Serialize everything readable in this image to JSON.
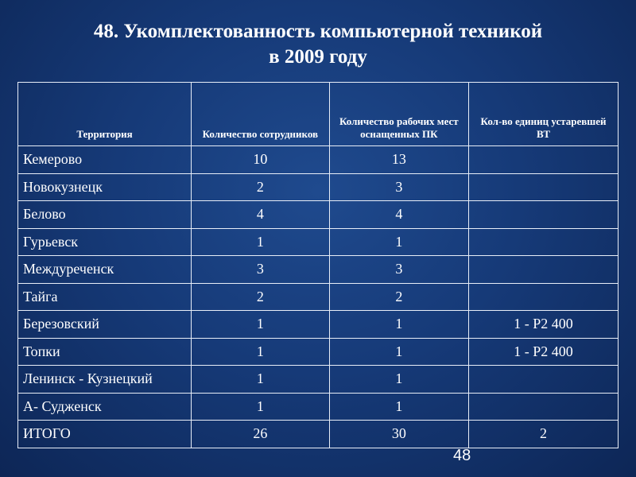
{
  "title": [
    "48. Укомплектованность компьютерной техникой",
    "в 2009 году"
  ],
  "table": {
    "header": [
      "Территория",
      "Количество сотрудников",
      "Количество рабочих мест оснащенных ПК",
      "Кол-во единиц устаревшей ВТ"
    ],
    "rows": [
      [
        "Кемерово",
        10,
        13,
        null
      ],
      [
        "Новокузнецк",
        2,
        3,
        null
      ],
      [
        "Белово",
        4,
        4,
        null
      ],
      [
        "Гурьевск",
        1,
        1,
        null
      ],
      [
        "Междуреченск",
        3,
        3,
        null
      ],
      [
        "Тайга",
        2,
        2,
        null
      ],
      [
        "Березовский",
        1,
        1,
        "1 - Р2 400"
      ],
      [
        "Топки",
        1,
        1,
        "1 - Р2 400"
      ],
      [
        "Ленинск - Кузнецкий",
        1,
        1,
        null
      ],
      [
        "А- Судженск",
        1,
        1,
        null
      ],
      [
        "ИТОГО",
        26,
        30,
        2
      ]
    ]
  },
  "page_number": 48
}
